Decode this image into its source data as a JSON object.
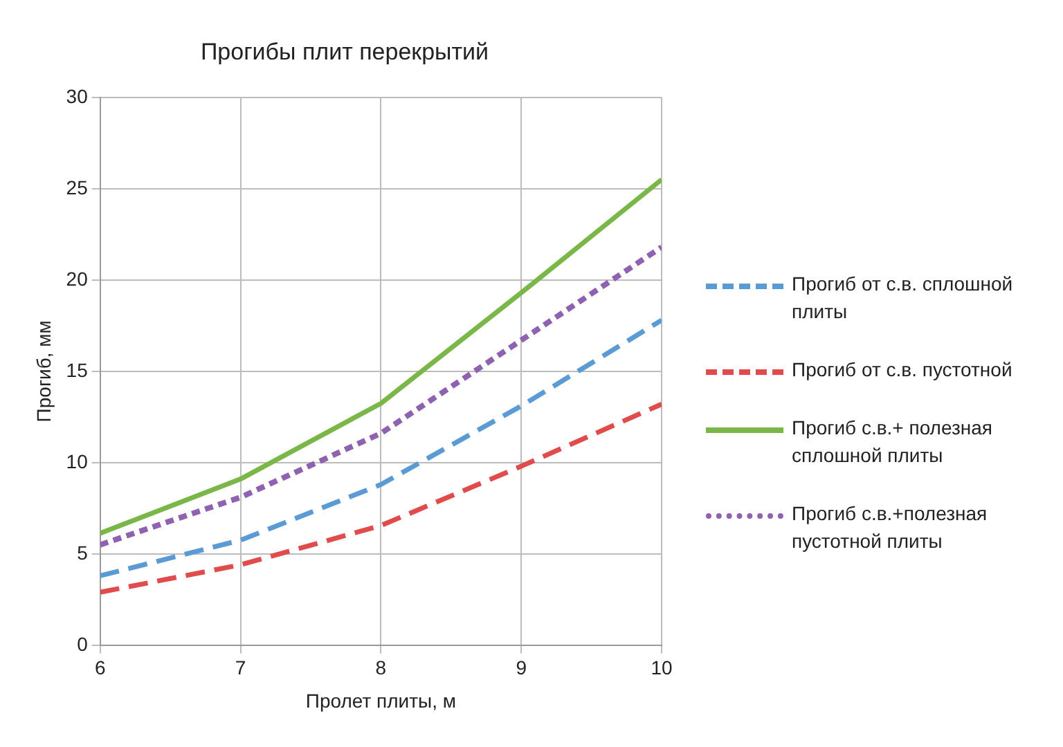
{
  "chart_data": {
    "type": "line",
    "title": "Прогибы плит перекрытий",
    "xlabel": "Пролет плиты, м",
    "ylabel": "Прогиб, мм",
    "x": [
      6,
      7,
      8,
      9,
      10
    ],
    "xlim": [
      6,
      10
    ],
    "xticks": [
      6,
      7,
      8,
      9,
      10
    ],
    "ylim": [
      0,
      30
    ],
    "yticks": [
      0,
      5,
      10,
      15,
      20,
      25,
      30
    ],
    "grid": true,
    "legend": "right",
    "marker": "none",
    "series": [
      {
        "name": "Прогиб от с.в. сплошной плиты",
        "color": "#5b9bd5",
        "line_style": "dashed",
        "values": [
          3.8,
          5.75,
          8.8,
          13.1,
          17.8
        ]
      },
      {
        "name": "Прогиб от с.в. пустотной",
        "color": "#e04b4b",
        "line_style": "dashed",
        "values": [
          2.9,
          4.4,
          6.55,
          9.8,
          13.2
        ]
      },
      {
        "name": "Прогиб с.в.+ полезная сплошной плиты",
        "color": "#7ab648",
        "line_style": "solid",
        "values": [
          6.13,
          9.1,
          13.24,
          19.3,
          25.5
        ]
      },
      {
        "name": "Прогиб с.в.+полезная пустотной плиты",
        "color": "#8e62b0",
        "line_style": "dotted",
        "values": [
          5.5,
          8.1,
          11.6,
          16.7,
          21.8
        ]
      }
    ]
  }
}
